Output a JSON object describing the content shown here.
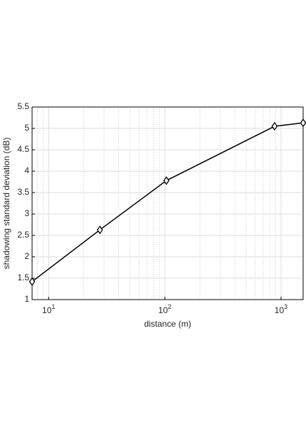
{
  "chart_data": {
    "type": "line",
    "xlabel": "distance (m)",
    "ylabel": "shadowing standard deviation (dB)",
    "xscale": "log",
    "xlim": [
      7.2,
      1550
    ],
    "ylim": [
      1,
      5.5
    ],
    "xticks": [
      {
        "value": 10,
        "label": "10^1"
      },
      {
        "value": 100,
        "label": "10^2"
      },
      {
        "value": 1000,
        "label": "10^3"
      }
    ],
    "yticks": [
      1,
      1.5,
      2,
      2.5,
      3,
      3.5,
      4,
      4.5,
      5,
      5.5
    ],
    "grid": true,
    "minor_grid": true,
    "series": [
      {
        "color": "#000000",
        "marker": "diamond",
        "x": [
          7.2,
          27.6,
          103,
          880,
          1550
        ],
        "values": [
          1.42,
          2.63,
          3.78,
          5.05,
          5.13
        ]
      }
    ]
  }
}
